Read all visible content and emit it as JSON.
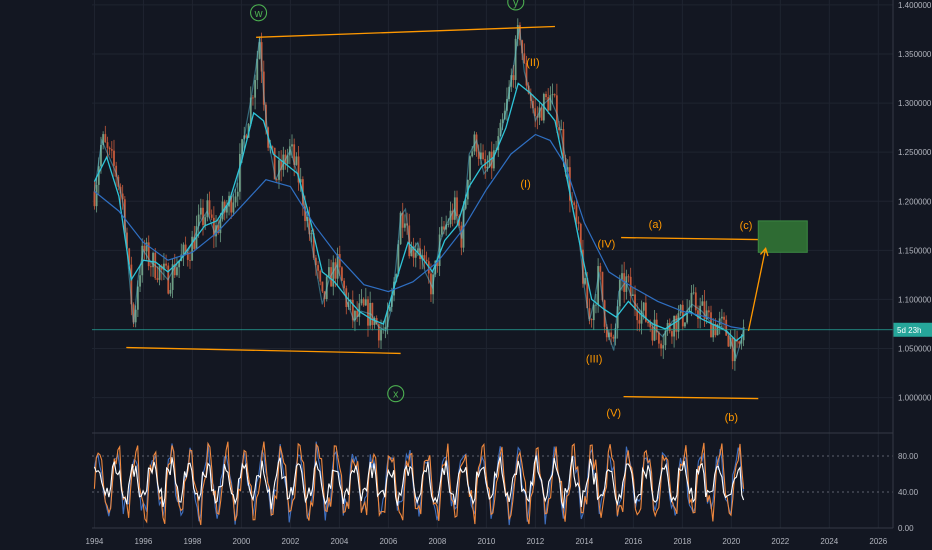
{
  "chart_data": {
    "type": "line",
    "instrument_note": "",
    "x_axis": {
      "ticks": [
        "1994",
        "1996",
        "1998",
        "2000",
        "2002",
        "2004",
        "2006",
        "2008",
        "2010",
        "2012",
        "2014",
        "2016",
        "2018",
        "2020",
        "2022",
        "2024",
        "2026"
      ],
      "range": [
        1993.9,
        2026.6
      ]
    },
    "y_axis_price": {
      "ticks": [
        "1.400000",
        "1.350000",
        "1.300000",
        "1.250000",
        "1.200000",
        "1.150000",
        "1.100000",
        "1.050000",
        "1.000000"
      ],
      "range": [
        0.967,
        1.405
      ]
    },
    "y_axis_oscillator": {
      "ticks": [
        "80.00",
        "40.00",
        "0.00"
      ],
      "range": [
        0,
        100
      ],
      "levels": [
        80,
        40
      ]
    },
    "last_price": 1.0691,
    "last_price_badge": "5d 23h",
    "series": [
      {
        "points": [
          [
            1994.0,
            1.21
          ],
          [
            1994.3,
            1.262
          ],
          [
            1994.6,
            1.245
          ],
          [
            1994.9,
            1.228
          ],
          [
            1995.2,
            1.195
          ],
          [
            1995.4,
            1.128
          ],
          [
            1995.6,
            1.075
          ],
          [
            1995.8,
            1.125
          ],
          [
            1996.0,
            1.15
          ],
          [
            1996.3,
            1.138
          ],
          [
            1996.6,
            1.132
          ],
          [
            1997.0,
            1.12
          ],
          [
            1997.4,
            1.138
          ],
          [
            1997.8,
            1.148
          ],
          [
            1998.0,
            1.158
          ],
          [
            1998.3,
            1.178
          ],
          [
            1998.6,
            1.19
          ],
          [
            1998.9,
            1.168
          ],
          [
            1999.2,
            1.185
          ],
          [
            1999.5,
            1.198
          ],
          [
            1999.8,
            1.215
          ],
          [
            2000.0,
            1.245
          ],
          [
            2000.2,
            1.278
          ],
          [
            2000.4,
            1.305
          ],
          [
            2000.6,
            1.338
          ],
          [
            2000.75,
            1.368
          ],
          [
            2000.9,
            1.312
          ],
          [
            2001.1,
            1.262
          ],
          [
            2001.4,
            1.222
          ],
          [
            2001.7,
            1.238
          ],
          [
            2002.0,
            1.252
          ],
          [
            2002.4,
            1.218
          ],
          [
            2002.7,
            1.178
          ],
          [
            2003.0,
            1.138
          ],
          [
            2003.3,
            1.095
          ],
          [
            2003.6,
            1.122
          ],
          [
            2003.9,
            1.135
          ],
          [
            2004.3,
            1.098
          ],
          [
            2004.6,
            1.078
          ],
          [
            2004.9,
            1.088
          ],
          [
            2005.3,
            1.085
          ],
          [
            2005.6,
            1.072
          ],
          [
            2005.9,
            1.068
          ],
          [
            2006.1,
            1.088
          ],
          [
            2006.3,
            1.132
          ],
          [
            2006.5,
            1.185
          ],
          [
            2006.7,
            1.192
          ],
          [
            2006.9,
            1.148
          ],
          [
            2007.2,
            1.158
          ],
          [
            2007.5,
            1.128
          ],
          [
            2007.8,
            1.112
          ],
          [
            2008.1,
            1.158
          ],
          [
            2008.4,
            1.178
          ],
          [
            2008.7,
            1.192
          ],
          [
            2009.0,
            1.162
          ],
          [
            2009.3,
            1.248
          ],
          [
            2009.6,
            1.262
          ],
          [
            2009.9,
            1.228
          ],
          [
            2010.2,
            1.238
          ],
          [
            2010.5,
            1.258
          ],
          [
            2010.8,
            1.292
          ],
          [
            2011.0,
            1.322
          ],
          [
            2011.2,
            1.352
          ],
          [
            2011.35,
            1.378
          ],
          [
            2011.55,
            1.332
          ],
          [
            2011.8,
            1.308
          ],
          [
            2012.0,
            1.282
          ],
          [
            2012.3,
            1.298
          ],
          [
            2012.6,
            1.305
          ],
          [
            2012.9,
            1.288
          ],
          [
            2013.2,
            1.248
          ],
          [
            2013.5,
            1.195
          ],
          [
            2013.8,
            1.158
          ],
          [
            2014.0,
            1.112
          ],
          [
            2014.2,
            1.078
          ],
          [
            2014.4,
            1.098
          ],
          [
            2014.6,
            1.128
          ],
          [
            2014.8,
            1.088
          ],
          [
            2015.0,
            1.062
          ],
          [
            2015.2,
            1.048
          ],
          [
            2015.4,
            1.108
          ],
          [
            2015.7,
            1.118
          ],
          [
            2016.0,
            1.098
          ],
          [
            2016.4,
            1.085
          ],
          [
            2016.8,
            1.072
          ],
          [
            2017.2,
            1.062
          ],
          [
            2017.6,
            1.078
          ],
          [
            2018.0,
            1.082
          ],
          [
            2018.4,
            1.095
          ],
          [
            2018.8,
            1.088
          ],
          [
            2019.2,
            1.075
          ],
          [
            2019.6,
            1.072
          ],
          [
            2019.9,
            1.064
          ],
          [
            2020.2,
            1.041
          ],
          [
            2020.4,
            1.058
          ],
          [
            2020.5,
            1.069
          ]
        ]
      },
      {
        "points": [
          [
            1994.0,
            1.22
          ],
          [
            1994.5,
            1.245
          ],
          [
            1995.0,
            1.205
          ],
          [
            1995.5,
            1.12
          ],
          [
            1996.0,
            1.14
          ],
          [
            1996.5,
            1.138
          ],
          [
            1997.0,
            1.128
          ],
          [
            1997.5,
            1.14
          ],
          [
            1998.0,
            1.158
          ],
          [
            1998.5,
            1.175
          ],
          [
            1999.0,
            1.18
          ],
          [
            1999.5,
            1.2
          ],
          [
            2000.0,
            1.24
          ],
          [
            2000.5,
            1.29
          ],
          [
            2000.9,
            1.282
          ],
          [
            2001.3,
            1.248
          ],
          [
            2001.8,
            1.238
          ],
          [
            2002.3,
            1.228
          ],
          [
            2002.8,
            1.182
          ],
          [
            2003.3,
            1.128
          ],
          [
            2003.8,
            1.118
          ],
          [
            2004.3,
            1.102
          ],
          [
            2004.8,
            1.088
          ],
          [
            2005.3,
            1.08
          ],
          [
            2005.8,
            1.075
          ],
          [
            2006.3,
            1.118
          ],
          [
            2006.8,
            1.158
          ],
          [
            2007.3,
            1.145
          ],
          [
            2007.8,
            1.128
          ],
          [
            2008.3,
            1.16
          ],
          [
            2008.8,
            1.175
          ],
          [
            2009.3,
            1.215
          ],
          [
            2009.8,
            1.235
          ],
          [
            2010.3,
            1.245
          ],
          [
            2010.8,
            1.275
          ],
          [
            2011.3,
            1.32
          ],
          [
            2011.8,
            1.31
          ],
          [
            2012.3,
            1.298
          ],
          [
            2012.8,
            1.282
          ],
          [
            2013.3,
            1.222
          ],
          [
            2013.8,
            1.158
          ],
          [
            2014.3,
            1.1
          ],
          [
            2014.8,
            1.09
          ],
          [
            2015.3,
            1.082
          ],
          [
            2015.8,
            1.098
          ],
          [
            2016.3,
            1.085
          ],
          [
            2016.8,
            1.075
          ],
          [
            2017.3,
            1.07
          ],
          [
            2017.8,
            1.078
          ],
          [
            2018.3,
            1.088
          ],
          [
            2018.8,
            1.08
          ],
          [
            2019.3,
            1.074
          ],
          [
            2019.8,
            1.068
          ],
          [
            2020.2,
            1.058
          ],
          [
            2020.5,
            1.064
          ]
        ]
      },
      {
        "points": [
          [
            1994.0,
            1.21
          ],
          [
            1995.0,
            1.19
          ],
          [
            1996.0,
            1.158
          ],
          [
            1997.0,
            1.14
          ],
          [
            1998.0,
            1.148
          ],
          [
            1999.0,
            1.168
          ],
          [
            2000.0,
            1.195
          ],
          [
            2001.0,
            1.222
          ],
          [
            2002.0,
            1.215
          ],
          [
            2003.0,
            1.175
          ],
          [
            2004.0,
            1.142
          ],
          [
            2005.0,
            1.115
          ],
          [
            2006.0,
            1.108
          ],
          [
            2007.0,
            1.118
          ],
          [
            2008.0,
            1.138
          ],
          [
            2009.0,
            1.17
          ],
          [
            2010.0,
            1.212
          ],
          [
            2011.0,
            1.248
          ],
          [
            2012.0,
            1.268
          ],
          [
            2012.6,
            1.262
          ],
          [
            2013.2,
            1.238
          ],
          [
            2014.0,
            1.178
          ],
          [
            2015.0,
            1.128
          ],
          [
            2016.0,
            1.112
          ],
          [
            2017.0,
            1.098
          ],
          [
            2018.0,
            1.088
          ],
          [
            2019.0,
            1.082
          ],
          [
            2020.0,
            1.072
          ],
          [
            2020.5,
            1.07
          ]
        ]
      }
    ],
    "annotations": {
      "wave_labels": [
        {
          "text": "w",
          "x": 2000.7,
          "y": 1.392,
          "color": "#4caf50",
          "circled": true
        },
        {
          "text": "y",
          "x": 2011.2,
          "y": 1.403,
          "color": "#4caf50",
          "circled": true
        },
        {
          "text": "x",
          "x": 2006.3,
          "y": 1.004,
          "color": "#4caf50",
          "circled": true
        },
        {
          "text": "(I)",
          "x": 2011.6,
          "y": 1.218,
          "color": "#ff9800"
        },
        {
          "text": "(II)",
          "x": 2011.9,
          "y": 1.342,
          "color": "#ff9800"
        },
        {
          "text": "(III)",
          "x": 2014.4,
          "y": 1.04,
          "color": "#ff9800"
        },
        {
          "text": "(IV)",
          "x": 2014.9,
          "y": 1.157,
          "color": "#ff9800"
        },
        {
          "text": "(V)",
          "x": 2015.2,
          "y": 0.985,
          "color": "#ff9800"
        },
        {
          "text": "(a)",
          "x": 2016.9,
          "y": 1.177,
          "color": "#ff9800"
        },
        {
          "text": "(b)",
          "x": 2020.0,
          "y": 0.98,
          "color": "#ff9800"
        },
        {
          "text": "(c)",
          "x": 2020.6,
          "y": 1.176,
          "color": "#ff9800"
        }
      ],
      "trend_lines": [
        {
          "from": [
            2000.6,
            1.367
          ],
          "to": [
            2012.8,
            1.378
          ]
        },
        {
          "from": [
            1995.3,
            1.051
          ],
          "to": [
            2006.5,
            1.045
          ]
        },
        {
          "from": [
            2015.5,
            1.163
          ],
          "to": [
            2021.1,
            1.161
          ]
        },
        {
          "from": [
            2015.6,
            1.001
          ],
          "to": [
            2021.1,
            0.999
          ]
        }
      ],
      "target_zone": {
        "x": [
          2021.1,
          2023.1
        ],
        "y": [
          1.148,
          1.18
        ],
        "color": "#2e6b33"
      },
      "projection_arrow": {
        "from": [
          2020.7,
          1.068
        ],
        "to": [
          2021.4,
          1.152
        ]
      }
    },
    "colors": {
      "price_line": "#5fd0e8",
      "ma_fast": "#2ec5d8",
      "ma_slow": "#2f6fc2",
      "candle_up": "#6f9f86",
      "candle_down": "#c65a3b",
      "annotation_orange": "#ff9800",
      "annotation_green": "#4caf50",
      "oscillator_white": "#ffffff",
      "oscillator_orange": "#f0883e",
      "oscillator_blue": "#3f6fbf",
      "background": "#131722",
      "grid": "#1f2430",
      "price_marker": "#26a69a"
    }
  }
}
